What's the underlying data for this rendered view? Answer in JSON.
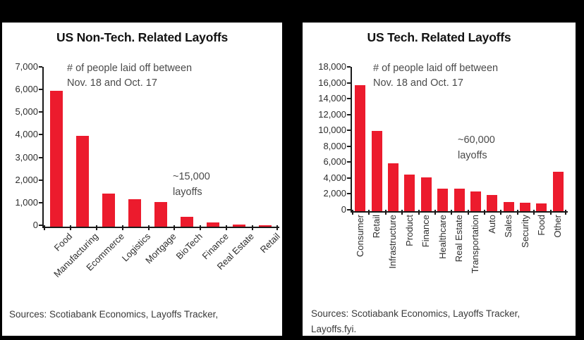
{
  "colors": {
    "background": "#000000",
    "panel": "#FFFFFF",
    "bar": "#EC1B2D",
    "axis": "#1A1A1A",
    "muted_text": "#4A4A4A"
  },
  "chart_data": [
    {
      "type": "bar",
      "title": "US Non-Tech. Related Layoffs",
      "annotation": "# of people laid off between\nNov. 18 and Oct. 17",
      "callout": "~15,000\nlayoffs",
      "categories": [
        "Food",
        "Manufacturing",
        "Ecommerce",
        "Logistics",
        "Mortgage",
        "BioTech",
        "Finance",
        "Real Estate",
        "Retail"
      ],
      "values": [
        6000,
        4000,
        1450,
        1200,
        1100,
        450,
        200,
        100,
        60
      ],
      "ylim": [
        0,
        7000
      ],
      "ytick_step": 1000,
      "ytick_labels": [
        "7,000",
        "6,000",
        "5,000",
        "4,000",
        "3,000",
        "2,000",
        "1,000",
        "0"
      ],
      "xlabel_rotation": 45,
      "grid": false,
      "legend": false,
      "source": "Sources: Scotiabank Economics, Layoffs Tracker,"
    },
    {
      "type": "bar",
      "title": "US Tech. Related Layoffs",
      "annotation": "# of people laid off between\nNov. 18 and Oct. 17",
      "callout": "~60,000\nlayoffs",
      "categories": [
        "Consumer",
        "Retail",
        "Infrastructure",
        "Product",
        "Finance",
        "Healthcare",
        "Real Estate",
        "Transportation",
        "Auto",
        "Sales",
        "Security",
        "Food",
        "Other"
      ],
      "values": [
        15900,
        10100,
        6000,
        4600,
        4300,
        2800,
        2800,
        2450,
        2000,
        1150,
        1050,
        950,
        5000
      ],
      "ylim": [
        0,
        18000
      ],
      "ytick_step": 2000,
      "ytick_labels": [
        "18,000",
        "16,000",
        "14,000",
        "12,000",
        "10,000",
        "8,000",
        "6,000",
        "4,000",
        "2,000",
        "0"
      ],
      "xlabel_rotation": 90,
      "grid": false,
      "legend": false,
      "source": "Sources: Scotiabank Economics, Layoffs Tracker,\nLayoffs.fyi."
    }
  ]
}
